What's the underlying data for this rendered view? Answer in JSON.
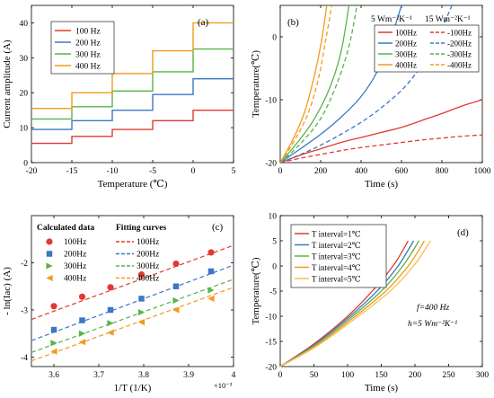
{
  "colors": {
    "red": "#e03a31",
    "blue": "#3b78c3",
    "green": "#58b44b",
    "orange": "#f29a1e"
  },
  "chart_data": [
    {
      "panel": "a",
      "type": "line",
      "tag": "(a)",
      "xlabel": "Temperature (℃)",
      "ylabel": "Current amplitude (A)",
      "xlim": [
        -20,
        5
      ],
      "ylim": [
        0,
        45
      ],
      "xticks": [
        "-20",
        "-15",
        "-10",
        "-5",
        "0",
        "5"
      ],
      "yticks": [
        "0",
        "10",
        "20",
        "30",
        "40"
      ],
      "legend_position": "top-left",
      "step_x": [
        -20,
        -15,
        -10,
        -5,
        0,
        5
      ],
      "series": [
        {
          "name": "100 Hz",
          "color": "red",
          "values": [
            5.5,
            7.5,
            9.5,
            12,
            15
          ]
        },
        {
          "name": "200 Hz",
          "color": "blue",
          "values": [
            9.5,
            12,
            15,
            19.5,
            24
          ]
        },
        {
          "name": "300 Hz",
          "color": "green",
          "values": [
            12.5,
            16,
            20.5,
            26,
            32.5
          ]
        },
        {
          "name": "400 Hz",
          "color": "orange",
          "values": [
            15.5,
            20,
            25.5,
            32,
            40
          ]
        }
      ]
    },
    {
      "panel": "b",
      "type": "line",
      "tag": "(b)",
      "xlabel": "Time (s)",
      "ylabel": "Temperature(℃)",
      "xlim": [
        0,
        1000
      ],
      "ylim": [
        -20,
        5
      ],
      "xticks": [
        "0",
        "200",
        "400",
        "600",
        "800",
        "1000"
      ],
      "yticks": [
        "-20",
        "-10",
        "0"
      ],
      "legend_position": "top-right",
      "legend_groups": [
        "5 Wm⁻²K⁻¹",
        "15 Wm⁻²K⁻¹"
      ],
      "series": [
        {
          "name": "100Hz",
          "group": 0,
          "color": "red",
          "dash": false,
          "x": [
            0,
            100,
            200,
            300,
            400,
            500,
            600,
            700,
            800,
            900,
            1000
          ],
          "y": [
            -20,
            -18.8,
            -17.8,
            -16.8,
            -16,
            -15.2,
            -14.4,
            -13.3,
            -12.2,
            -11,
            -10
          ]
        },
        {
          "name": "200Hz",
          "group": 0,
          "color": "blue",
          "dash": false,
          "x": [
            0,
            100,
            200,
            300,
            400,
            480,
            550,
            600
          ],
          "y": [
            -20,
            -17.8,
            -15.5,
            -12.8,
            -9.5,
            -5.5,
            0,
            5
          ]
        },
        {
          "name": "300Hz",
          "group": 0,
          "color": "green",
          "dash": false,
          "x": [
            0,
            80,
            160,
            240,
            300,
            340
          ],
          "y": [
            -20,
            -17,
            -13.5,
            -8.5,
            -2.5,
            5
          ]
        },
        {
          "name": "400Hz",
          "group": 0,
          "color": "orange",
          "dash": false,
          "x": [
            0,
            60,
            120,
            170,
            205,
            230
          ],
          "y": [
            -20,
            -16.5,
            -12,
            -6,
            -0.5,
            5
          ]
        },
        {
          "name": "-100Hz",
          "group": 1,
          "color": "red",
          "dash": true,
          "x": [
            0,
            100,
            200,
            300,
            400,
            500,
            600,
            700,
            800,
            900,
            1000
          ],
          "y": [
            -20,
            -19.3,
            -18.7,
            -18.1,
            -17.6,
            -17.2,
            -16.8,
            -16.4,
            -16.1,
            -15.8,
            -15.6
          ]
        },
        {
          "name": "-200Hz",
          "group": 1,
          "color": "blue",
          "dash": true,
          "x": [
            0,
            150,
            300,
            450,
            600,
            700,
            780,
            850
          ],
          "y": [
            -20,
            -18,
            -15.5,
            -12.5,
            -8.5,
            -4.5,
            0,
            5
          ]
        },
        {
          "name": "-300Hz",
          "group": 1,
          "color": "green",
          "dash": true,
          "x": [
            0,
            100,
            200,
            280,
            340,
            380
          ],
          "y": [
            -20,
            -17,
            -13,
            -7.5,
            -1.5,
            5
          ]
        },
        {
          "name": "-400Hz",
          "group": 1,
          "color": "orange",
          "dash": true,
          "x": [
            0,
            70,
            140,
            190,
            225,
            255
          ],
          "y": [
            -20,
            -16.5,
            -12,
            -6.5,
            -0.5,
            5
          ]
        }
      ]
    },
    {
      "panel": "c",
      "type": "scatter",
      "tag": "(c)",
      "xlabel": "1/T (1/K)",
      "ylabel": "- ln(Iac) (A)",
      "xlim": [
        3.55,
        4.0
      ],
      "ylim": [
        -4.2,
        -1.0
      ],
      "x_multiplier": "×10⁻³",
      "xticks": [
        "3.6",
        "3.7",
        "3.8",
        "3.9",
        "4"
      ],
      "yticks": [
        "-4",
        "-3",
        "-2"
      ],
      "legend_position": "top-left",
      "legend_titles": [
        "Calculated data",
        "Fitting curves"
      ],
      "x": [
        3.6,
        3.663,
        3.726,
        3.795,
        3.872,
        3.95
      ],
      "series": [
        {
          "name": "100Hz",
          "fit_name": "100Hz",
          "color": "red",
          "marker": "circle",
          "values": [
            -2.92,
            -2.72,
            -2.52,
            -2.25,
            -2.02,
            -1.78
          ],
          "fit": [
            -3.2,
            -1.63
          ]
        },
        {
          "name": "200Hz",
          "fit_name": "200Hz",
          "color": "blue",
          "marker": "square",
          "values": [
            -3.42,
            -3.22,
            -3.0,
            -2.76,
            -2.5,
            -2.18
          ],
          "fit": [
            -3.65,
            -2.05
          ]
        },
        {
          "name": "300Hz",
          "fit_name": "300Hz",
          "color": "green",
          "marker": "tri-right",
          "values": [
            -3.7,
            -3.5,
            -3.28,
            -3.05,
            -2.8,
            -2.58
          ],
          "fit": [
            -3.9,
            -2.35
          ]
        },
        {
          "name": "400Hz",
          "fit_name": "400Hz",
          "color": "orange",
          "marker": "tri-left",
          "values": [
            -3.88,
            -3.68,
            -3.48,
            -3.26,
            -3.0,
            -2.76
          ],
          "fit": [
            -4.08,
            -2.52
          ]
        }
      ]
    },
    {
      "panel": "d",
      "type": "line",
      "tag": "(d)",
      "xlabel": "Time (s)",
      "ylabel": "Temperature(℃)",
      "xlim": [
        0,
        300
      ],
      "ylim": [
        -20,
        10
      ],
      "xticks": [
        "0",
        "50",
        "100",
        "150",
        "200",
        "250",
        "300"
      ],
      "yticks": [
        "-20",
        "-15",
        "-10",
        "-5",
        "0",
        "5",
        "10"
      ],
      "legend_position": "top-left",
      "annotations": [
        "f=400 Hz",
        "h=5 Wm⁻²K⁻¹"
      ],
      "series": [
        {
          "name": "T interval=1℃",
          "color": "red",
          "x": [
            0,
            50,
            100,
            140,
            170,
            190
          ],
          "y": [
            -20,
            -15.5,
            -10,
            -4.5,
            0.5,
            5
          ]
        },
        {
          "name": "T interval=2℃",
          "color": "blue",
          "x": [
            0,
            50,
            100,
            145,
            175,
            198
          ],
          "y": [
            -20,
            -15.7,
            -10.4,
            -4.8,
            0,
            5
          ]
        },
        {
          "name": "T interval=3℃",
          "color": "green",
          "x": [
            0,
            50,
            100,
            150,
            182,
            206
          ],
          "y": [
            -20,
            -15.9,
            -10.8,
            -5,
            0,
            5
          ]
        },
        {
          "name": "T interval=4℃",
          "color": "orange",
          "x": [
            0,
            50,
            100,
            155,
            190,
            214
          ],
          "y": [
            -20,
            -16.1,
            -11.2,
            -5.2,
            0,
            5
          ]
        },
        {
          "name": "T interval=5℃",
          "color": "orange",
          "light": true,
          "x": [
            0,
            50,
            100,
            160,
            198,
            223
          ],
          "y": [
            -20,
            -16.3,
            -11.6,
            -5.4,
            0,
            5
          ]
        }
      ]
    }
  ]
}
